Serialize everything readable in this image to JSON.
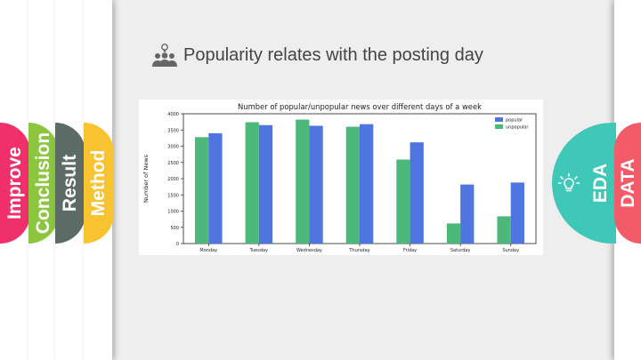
{
  "slide_title": "Popularity relates with the posting day",
  "tabs_left": [
    {
      "label": "Improve",
      "color": "#f0306a"
    },
    {
      "label": "Conclusion",
      "color": "#8cc63f"
    },
    {
      "label": "Result",
      "color": "#5c6b66"
    },
    {
      "label": "Method",
      "color": "#f7c331"
    }
  ],
  "tabs_right": [
    {
      "label": "EDA",
      "color": "#3fc8b7"
    },
    {
      "label": "DATA",
      "color": "#f45b69"
    }
  ],
  "icons": {
    "title": "user-group-idea-icon",
    "eda": "lightbulb-icon"
  },
  "chart_data": {
    "type": "bar",
    "title": "Number of popular/unpopular news over different days of a week",
    "ylabel": "Number of News",
    "xlabel": "",
    "categories": [
      "Monday",
      "Tuesday",
      "Wednesday",
      "Thursday",
      "Friday",
      "Saturday",
      "Sunday"
    ],
    "series": [
      {
        "name": "unpopular",
        "color": "#4cb87a",
        "values": [
          3280,
          3740,
          3820,
          3600,
          2590,
          620,
          840
        ]
      },
      {
        "name": "popular",
        "color": "#5075e0",
        "values": [
          3400,
          3650,
          3630,
          3680,
          3120,
          1820,
          1880
        ]
      }
    ],
    "ylim": [
      0,
      4000
    ],
    "yticks": [
      0,
      500,
      1000,
      1500,
      2000,
      2500,
      3000,
      3500,
      4000
    ],
    "legend": {
      "position": "top-right",
      "order": [
        "popular",
        "unpopular"
      ]
    },
    "grid": false
  }
}
